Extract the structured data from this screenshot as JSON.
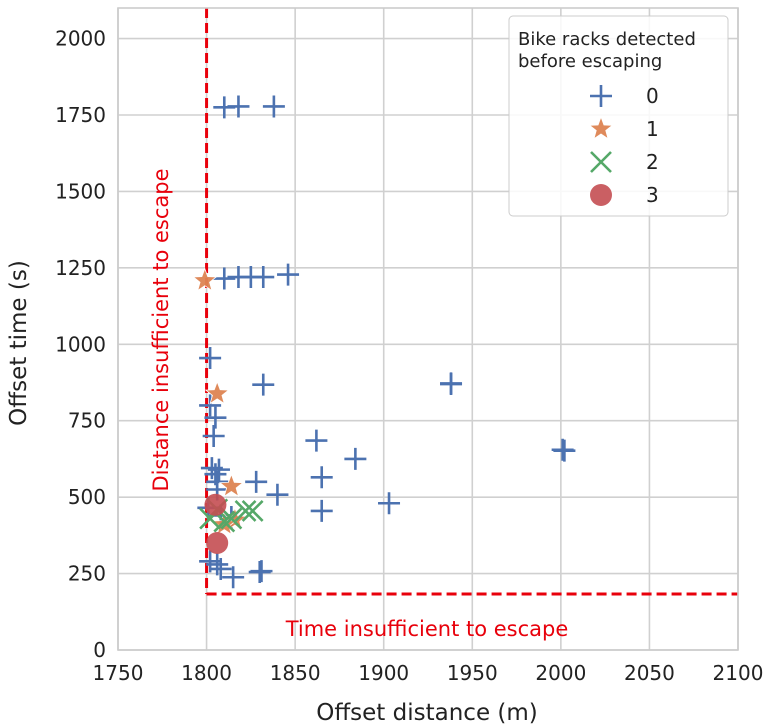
{
  "chart_data": {
    "type": "scatter",
    "xlabel": "Offset distance (m)",
    "ylabel": "Offset time (s)",
    "xlim": [
      1750,
      2100
    ],
    "ylim": [
      0,
      2100
    ],
    "x_ticks": [
      1750,
      1800,
      1850,
      1900,
      1950,
      2000,
      2050,
      2100
    ],
    "y_ticks": [
      0,
      250,
      500,
      750,
      1000,
      1250,
      1500,
      1750,
      2000
    ],
    "grid": true,
    "legend": {
      "title_line1": "Bike racks detected",
      "title_line2": "before escaping",
      "position": "top-right"
    },
    "series": [
      {
        "name": "0",
        "marker": "plus",
        "color": "#4c72b0",
        "points": [
          [
            1810,
            1775
          ],
          [
            1818,
            1778
          ],
          [
            1838,
            1778
          ],
          [
            1810,
            1215
          ],
          [
            1818,
            1220
          ],
          [
            1825,
            1220
          ],
          [
            1832,
            1220
          ],
          [
            1846,
            1228
          ],
          [
            1802,
            955
          ],
          [
            1832,
            868
          ],
          [
            1938,
            870
          ],
          [
            1938,
            872
          ],
          [
            1802,
            800
          ],
          [
            1805,
            760
          ],
          [
            1804,
            700
          ],
          [
            1862,
            685
          ],
          [
            1884,
            625
          ],
          [
            1865,
            565
          ],
          [
            2001,
            655
          ],
          [
            2002,
            652
          ],
          [
            1803,
            595
          ],
          [
            1807,
            590
          ],
          [
            1805,
            575
          ],
          [
            1806,
            550
          ],
          [
            1806,
            525
          ],
          [
            1828,
            550
          ],
          [
            1840,
            508
          ],
          [
            1865,
            455
          ],
          [
            1903,
            480
          ],
          [
            1801,
            465
          ],
          [
            1808,
            440
          ],
          [
            1814,
            435
          ],
          [
            1802,
            290
          ],
          [
            1806,
            280
          ],
          [
            1808,
            265
          ],
          [
            1815,
            238
          ],
          [
            1830,
            255
          ],
          [
            1831,
            258
          ]
        ]
      },
      {
        "name": "1",
        "marker": "star",
        "color": "#dd8452",
        "points": [
          [
            1799,
            1208
          ],
          [
            1806,
            838
          ],
          [
            1814,
            535
          ],
          [
            1816,
            425
          ],
          [
            1810,
            410
          ]
        ]
      },
      {
        "name": "2",
        "marker": "x",
        "color": "#55a868",
        "points": [
          [
            1802,
            430
          ],
          [
            1810,
            420
          ],
          [
            1814,
            430
          ],
          [
            1822,
            455
          ],
          [
            1826,
            455
          ],
          [
            1806,
            460
          ]
        ]
      },
      {
        "name": "3",
        "marker": "circle",
        "color": "#c44e52",
        "points": [
          [
            1805,
            475
          ],
          [
            1806,
            350
          ]
        ]
      }
    ],
    "annotations": [
      {
        "text": "Distance insufficient to escape",
        "color": "#e8000b"
      },
      {
        "text": "Time insufficient to escape",
        "color": "#e8000b"
      }
    ],
    "threshold_lines": {
      "color": "#e8000b",
      "vertical_x": 1800,
      "vertical_y_from": 183,
      "horizontal_y": 183,
      "horizontal_x_from": 1800
    }
  }
}
